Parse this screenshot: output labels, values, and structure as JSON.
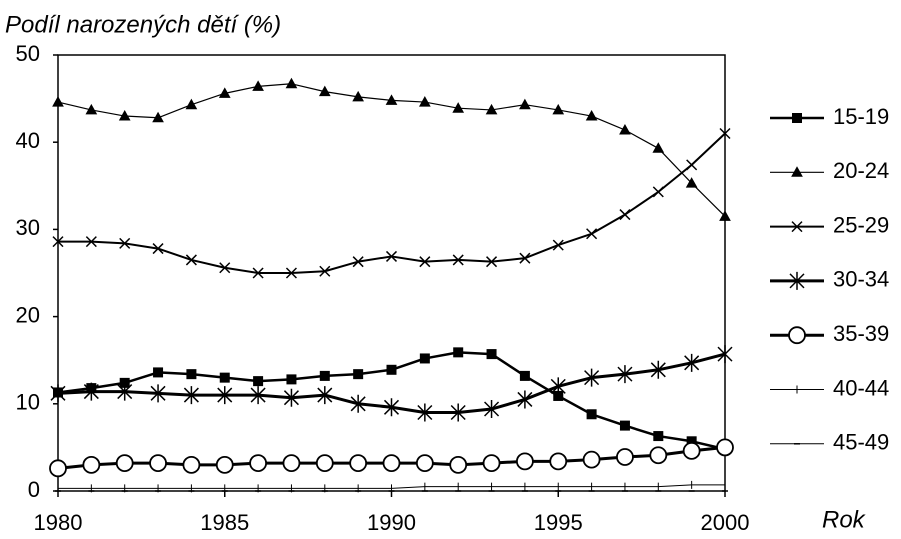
{
  "chart_data": {
    "type": "line",
    "title": "Podíl narozených dětí (%)",
    "x_label": "Rok",
    "x": [
      1980,
      1981,
      1982,
      1983,
      1984,
      1985,
      1986,
      1987,
      1988,
      1989,
      1990,
      1991,
      1992,
      1993,
      1994,
      1995,
      1996,
      1997,
      1998,
      1999,
      2000
    ],
    "xlim": [
      1980,
      2000
    ],
    "xticks": [
      1980,
      1985,
      1990,
      1995,
      2000
    ],
    "ylim": [
      0,
      50
    ],
    "yticks": [
      0,
      10,
      20,
      30,
      40,
      50
    ],
    "legend": "right",
    "series": [
      {
        "name": "15-19",
        "color": "#000000",
        "marker": "square",
        "width": 2.5,
        "values": [
          11.3,
          11.8,
          12.4,
          13.6,
          13.4,
          13.0,
          12.6,
          12.8,
          13.2,
          13.4,
          13.9,
          15.2,
          15.9,
          15.7,
          13.2,
          10.9,
          8.8,
          7.5,
          6.3,
          5.7,
          4.8
        ]
      },
      {
        "name": "20-24",
        "color": "#000000",
        "marker": "triangle",
        "width": 1.2,
        "values": [
          44.6,
          43.7,
          43.0,
          42.8,
          44.3,
          45.6,
          46.4,
          46.7,
          45.8,
          45.2,
          44.8,
          44.6,
          43.9,
          43.7,
          44.3,
          43.7,
          43.0,
          41.4,
          39.3,
          35.3,
          31.5
        ]
      },
      {
        "name": "25-29",
        "color": "#000000",
        "marker": "x",
        "width": 2,
        "values": [
          28.6,
          28.6,
          28.4,
          27.8,
          26.5,
          25.6,
          25.0,
          25.0,
          25.2,
          26.3,
          26.9,
          26.3,
          26.5,
          26.3,
          26.7,
          28.2,
          29.5,
          31.7,
          34.3,
          37.4,
          41.0
        ]
      },
      {
        "name": "30-34",
        "color": "#000000",
        "marker": "asterisk",
        "width": 3,
        "values": [
          11.2,
          11.4,
          11.4,
          11.2,
          11.0,
          11.0,
          11.0,
          10.7,
          11.0,
          10.0,
          9.6,
          9.0,
          9.0,
          9.4,
          10.5,
          12.0,
          13.0,
          13.4,
          13.9,
          14.7,
          15.7
        ]
      },
      {
        "name": "35-39",
        "color": "#000000",
        "marker": "circle",
        "width": 3,
        "values": [
          2.6,
          3.0,
          3.2,
          3.2,
          3.0,
          3.0,
          3.2,
          3.2,
          3.2,
          3.2,
          3.2,
          3.2,
          3.0,
          3.2,
          3.4,
          3.4,
          3.6,
          3.9,
          4.1,
          4.6,
          5.0
        ]
      },
      {
        "name": "40-44",
        "color": "#000000",
        "marker": "plus",
        "width": 1,
        "values": [
          0.3,
          0.3,
          0.3,
          0.3,
          0.3,
          0.3,
          0.3,
          0.3,
          0.3,
          0.3,
          0.3,
          0.5,
          0.5,
          0.5,
          0.5,
          0.5,
          0.5,
          0.5,
          0.5,
          0.7,
          0.7
        ]
      },
      {
        "name": "45-49",
        "color": "#000000",
        "marker": "dash",
        "width": 1,
        "values": [
          0,
          0,
          0,
          0,
          0,
          0,
          0,
          0,
          0,
          0,
          0,
          0,
          0,
          0,
          0,
          0,
          0,
          0,
          0,
          0,
          0
        ]
      }
    ]
  }
}
